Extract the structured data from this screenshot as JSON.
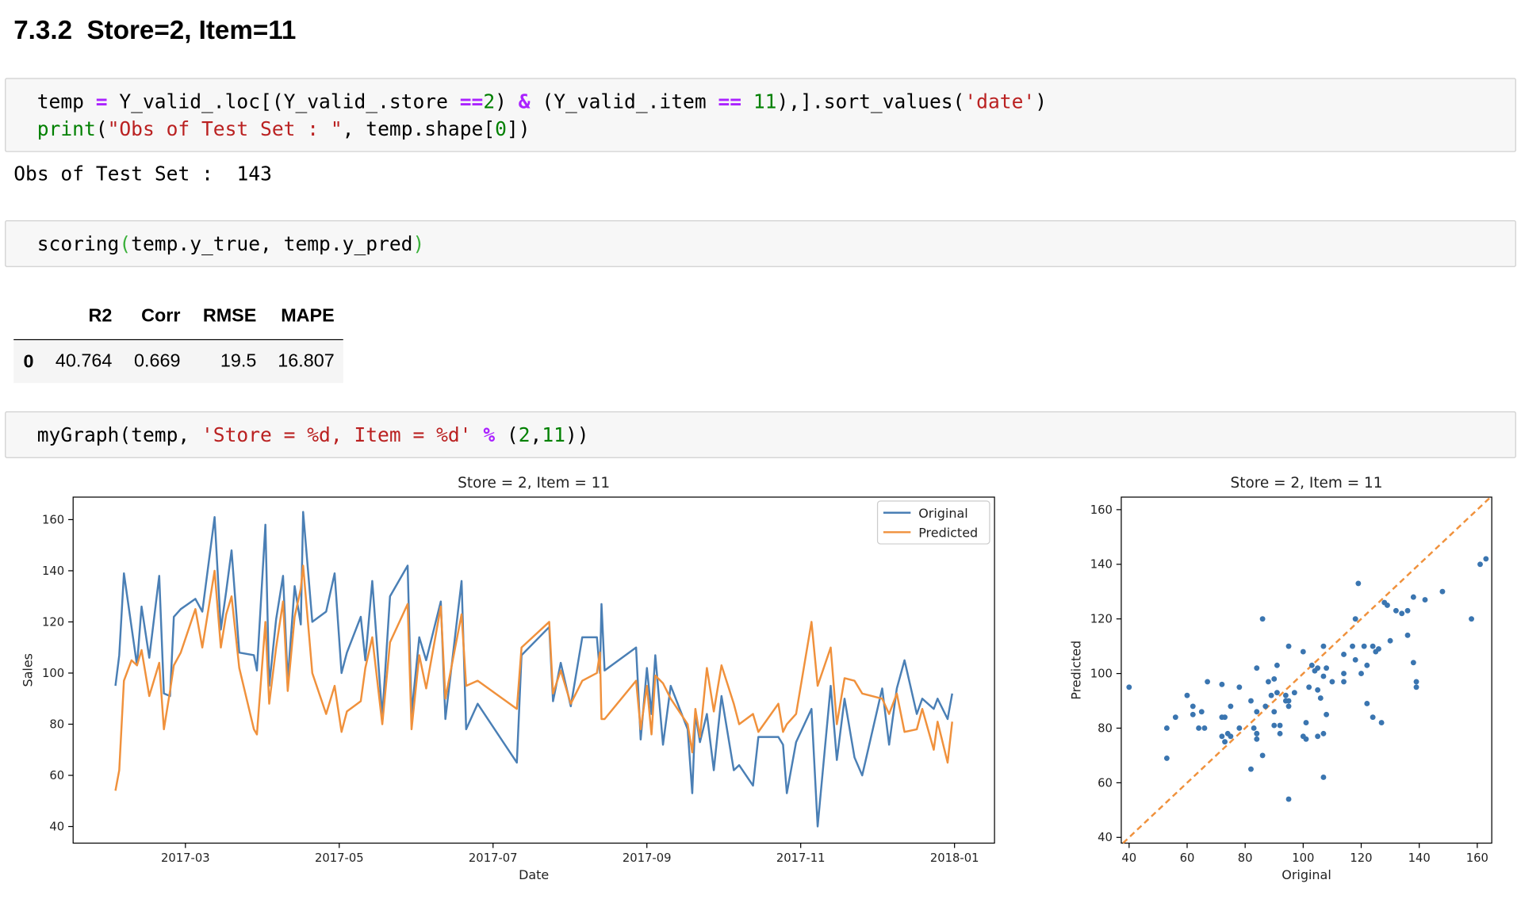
{
  "heading": "7.3.2  Store=2, Item=11",
  "cells": [
    {
      "lines": [
        [
          {
            "text": "temp ",
            "color": "#000000"
          },
          {
            "text": "=",
            "color": "#aa22ff"
          },
          {
            "text": " Y_valid_.loc[(Y_valid_.store ",
            "color": "#000000"
          },
          {
            "text": "==",
            "color": "#aa22ff"
          },
          {
            "text": "2",
            "color": "#008000"
          },
          {
            "text": ") ",
            "color": "#000000"
          },
          {
            "text": "&",
            "color": "#aa22ff"
          },
          {
            "text": " (Y_valid_.item ",
            "color": "#000000"
          },
          {
            "text": "==",
            "color": "#aa22ff"
          },
          {
            "text": " 11",
            "color": "#008000"
          },
          {
            "text": "),].sort_values(",
            "color": "#000000"
          },
          {
            "text": "'date'",
            "color": "#ba2121"
          },
          {
            "text": ")",
            "color": "#000000"
          }
        ],
        [
          {
            "text": "print",
            "color": "#008000"
          },
          {
            "text": "(",
            "color": "#000000"
          },
          {
            "text": "\"Obs of Test Set : \"",
            "color": "#ba2121"
          },
          {
            "text": ", temp.shape[",
            "color": "#000000"
          },
          {
            "text": "0",
            "color": "#008000"
          },
          {
            "text": "])",
            "color": "#000000"
          }
        ]
      ],
      "output": "Obs of Test Set :  143"
    },
    {
      "lines": [
        [
          {
            "text": "scoring",
            "color": "#000000"
          },
          {
            "text": "(",
            "color": "#3ab03a"
          },
          {
            "text": "temp.y_true, temp.y_pred",
            "color": "#000000"
          },
          {
            "text": ")",
            "color": "#3ab03a"
          }
        ]
      ],
      "table": {
        "columns": [
          "R2",
          "Corr",
          "RMSE",
          "MAPE"
        ],
        "index": [
          "0"
        ],
        "rows": [
          [
            40.764,
            0.669,
            19.5,
            16.807
          ]
        ]
      }
    },
    {
      "lines": [
        [
          {
            "text": "myGraph(temp, ",
            "color": "#000000"
          },
          {
            "text": "'Store = %d, Item = %d'",
            "color": "#ba2121"
          },
          {
            "text": " ",
            "color": "#000000"
          },
          {
            "text": "%",
            "color": "#aa22ff"
          },
          {
            "text": " (",
            "color": "#000000"
          },
          {
            "text": "2",
            "color": "#008000"
          },
          {
            "text": ",",
            "color": "#000000"
          },
          {
            "text": "11",
            "color": "#008000"
          },
          {
            "text": "))",
            "color": "#000000"
          }
        ]
      ]
    }
  ],
  "chart_data": [
    {
      "type": "line",
      "title": "Store = 2, Item = 11",
      "x_label": "Date",
      "y_label": "Sales",
      "legend": "upper right",
      "x": [
        2.09,
        2.14,
        2.2,
        2.3,
        2.37,
        2.43,
        2.53,
        2.66,
        2.72,
        2.8,
        2.85,
        2.94,
        3.13,
        3.22,
        3.38,
        3.46,
        3.53,
        3.6,
        3.7,
        3.89,
        3.93,
        4.04,
        4.09,
        4.18,
        4.27,
        4.33,
        4.42,
        4.5,
        4.53,
        4.65,
        4.83,
        4.94,
        5.03,
        5.1,
        5.28,
        5.34,
        5.43,
        5.56,
        5.66,
        5.89,
        5.94,
        6.04,
        6.13,
        6.32,
        6.38,
        6.59,
        6.65,
        6.8,
        7.31,
        7.37,
        7.73,
        7.78,
        7.88,
        8.01,
        8.16,
        8.35,
        8.39,
        8.41,
        8.45,
        8.86,
        8.92,
        9.0,
        9.06,
        9.11,
        9.21,
        9.31,
        9.53,
        9.59,
        9.63,
        9.69,
        9.78,
        9.87,
        9.97,
        10.13,
        10.2,
        10.38,
        10.45,
        10.71,
        10.77,
        10.82,
        10.94,
        11.14,
        11.22,
        11.39,
        11.47,
        11.57,
        11.7,
        11.8,
        12.06,
        12.15,
        12.25,
        12.35,
        12.51,
        12.58,
        12.73,
        12.78,
        12.91,
        12.97
      ],
      "series": [
        {
          "name": "Original",
          "color": "#4a7fb5",
          "values": [
            95,
            107,
            139,
            118,
            103,
            126,
            106,
            138,
            92,
            91,
            122,
            125,
            129,
            124,
            161,
            117,
            132,
            148,
            108,
            107,
            101,
            158,
            95,
            121,
            138,
            97,
            134,
            119,
            163,
            120,
            124,
            139,
            100,
            108,
            122,
            105,
            136,
            83,
            130,
            142,
            84,
            114,
            105,
            128,
            82,
            136,
            78,
            88,
            65,
            107,
            118,
            89,
            104,
            87,
            114,
            114,
            100,
            127,
            101,
            110,
            74,
            102,
            84,
            107,
            72,
            95,
            78,
            53,
            84,
            73,
            84,
            62,
            91,
            62,
            64,
            56,
            75,
            75,
            72,
            53,
            73,
            86,
            40,
            95,
            66,
            90,
            67,
            60,
            94,
            72,
            94,
            105,
            84,
            90,
            86,
            90,
            82,
            92
          ]
        },
        {
          "name": "Predicted",
          "color": "#f0913c",
          "values": [
            54,
            62,
            97,
            105,
            103,
            109,
            91,
            104,
            78,
            93,
            103,
            108,
            125,
            110,
            140,
            110,
            123,
            130,
            102,
            78,
            76,
            120,
            88,
            110,
            128,
            93,
            122,
            133,
            142,
            100,
            84,
            95,
            77,
            85,
            89,
            102,
            114,
            80,
            112,
            127,
            78,
            107,
            94,
            126,
            90,
            123,
            95,
            97,
            86,
            110,
            120,
            92,
            101,
            88,
            97,
            100,
            108,
            82,
            82,
            97,
            78,
            95,
            76,
            99,
            96,
            90,
            80,
            69,
            86,
            75,
            102,
            85,
            103,
            88,
            80,
            84,
            77,
            88,
            77,
            80,
            84,
            120,
            95,
            110,
            80,
            98,
            97,
            92,
            90,
            84,
            92,
            77,
            78,
            86,
            70,
            81,
            65,
            81
          ]
        }
      ],
      "xlim": [
        1.54,
        13.52
      ],
      "xticks": [
        {
          "value": 3,
          "label": "2017-03"
        },
        {
          "value": 5,
          "label": "2017-05"
        },
        {
          "value": 7,
          "label": "2017-07"
        },
        {
          "value": 9,
          "label": "2017-09"
        },
        {
          "value": 11,
          "label": "2017-11"
        },
        {
          "value": 13,
          "label": "2018-01"
        }
      ],
      "ylim": [
        33.5,
        168.8
      ],
      "yticks": [
        40,
        60,
        80,
        100,
        120,
        140,
        160
      ],
      "grid": false
    },
    {
      "type": "scatter",
      "title": "Store = 2, Item = 11",
      "x_label": "Original",
      "y_label": "Predicted",
      "color": "#3a75b0",
      "diagonal": true,
      "diagonal_color": "#f0913c",
      "x": [
        95,
        107,
        139,
        118,
        103,
        126,
        106,
        138,
        92,
        91,
        122,
        125,
        129,
        124,
        161,
        117,
        132,
        148,
        108,
        107,
        101,
        158,
        95,
        121,
        138,
        97,
        134,
        119,
        163,
        120,
        124,
        139,
        100,
        108,
        122,
        105,
        136,
        83,
        130,
        142,
        84,
        114,
        105,
        128,
        82,
        136,
        78,
        88,
        65,
        107,
        118,
        89,
        104,
        87,
        114,
        114,
        100,
        127,
        101,
        110,
        74,
        102,
        84,
        107,
        72,
        95,
        78,
        53,
        84,
        73,
        84,
        62,
        91,
        62,
        64,
        56,
        75,
        75,
        72,
        53,
        73,
        86,
        40,
        95,
        66,
        90,
        67,
        60,
        94,
        72,
        94,
        105,
        84,
        90,
        86,
        90,
        82,
        92
      ],
      "y": [
        54,
        62,
        97,
        105,
        103,
        109,
        91,
        104,
        78,
        93,
        103,
        108,
        125,
        110,
        140,
        110,
        123,
        130,
        102,
        78,
        76,
        120,
        88,
        110,
        128,
        93,
        122,
        133,
        142,
        100,
        84,
        95,
        77,
        85,
        89,
        102,
        114,
        80,
        112,
        127,
        78,
        107,
        94,
        126,
        90,
        123,
        95,
        97,
        86,
        110,
        120,
        92,
        101,
        88,
        97,
        100,
        108,
        82,
        82,
        97,
        78,
        95,
        76,
        99,
        96,
        90,
        80,
        69,
        86,
        75,
        102,
        85,
        103,
        88,
        80,
        84,
        77,
        88,
        77,
        80,
        84,
        120,
        95,
        110,
        80,
        98,
        97,
        92,
        90,
        84,
        92,
        77,
        78,
        86,
        70,
        81,
        65,
        81
      ],
      "xlim": [
        37.3,
        165
      ],
      "xticks": [
        40,
        60,
        80,
        100,
        120,
        140,
        160
      ],
      "ylim": [
        37.9,
        164.6
      ],
      "yticks": [
        40,
        60,
        80,
        100,
        120,
        140,
        160
      ],
      "grid": false
    }
  ]
}
